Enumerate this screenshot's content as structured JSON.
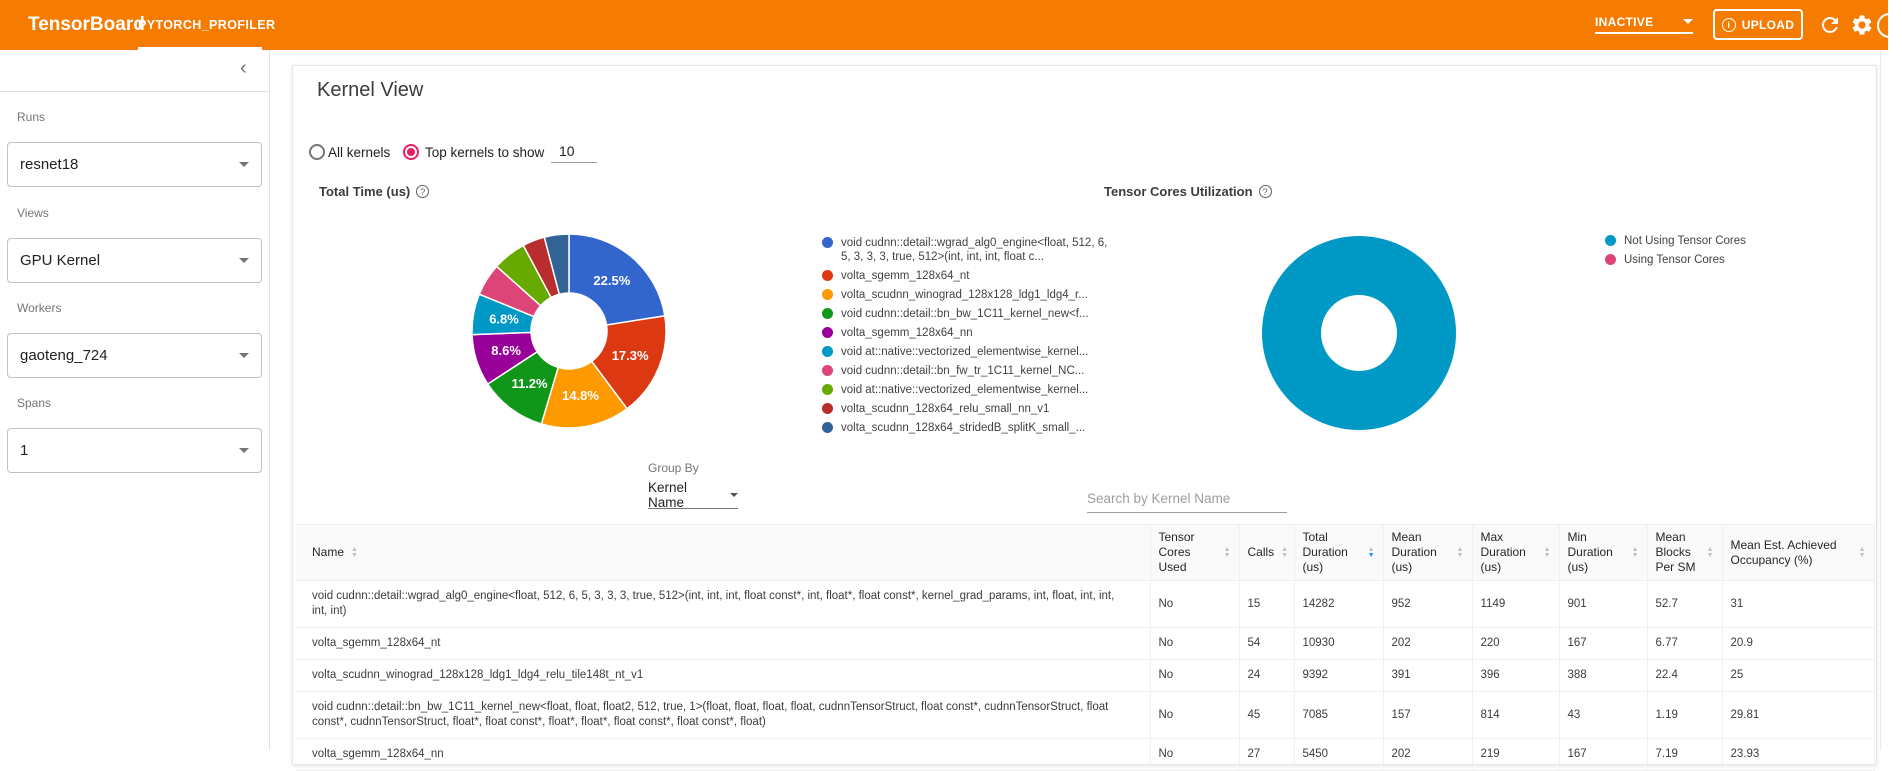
{
  "header": {
    "brand": "TensorBoard",
    "tab": "PYTORCH_PROFILER",
    "status": "INACTIVE",
    "upload_label": "UPLOAD",
    "bar_color": "#f57c00"
  },
  "sidebar": {
    "sections": [
      {
        "label": "Runs",
        "value": "resnet18"
      },
      {
        "label": "Views",
        "value": "GPU Kernel"
      },
      {
        "label": "Workers",
        "value": "gaoteng_724"
      },
      {
        "label": "Spans",
        "value": "1"
      }
    ]
  },
  "main": {
    "title": "Kernel View",
    "radios": [
      {
        "label": "All kernels",
        "selected": false
      },
      {
        "label": "Top kernels to show",
        "selected": true
      }
    ],
    "top_kernels_value": "10",
    "group_by": {
      "label": "Group By",
      "value": "Kernel Name"
    },
    "search_placeholder": "Search by Kernel Name"
  },
  "chart_data": [
    {
      "type": "pie",
      "donut": true,
      "title": "Total Time (us)",
      "values_are_percent": true,
      "legend_position": "right",
      "show_percent_labels": true,
      "label_min_pct": 6,
      "labels": [
        "void cudnn::detail::wgrad_alg0_engine<float, 512, 6, 5, 3, 3, 3, true, 512>(int, int, int, float c...",
        "volta_sgemm_128x64_nt",
        "volta_scudnn_winograd_128x128_ldg1_ldg4_r...",
        "void cudnn::detail::bn_bw_1C11_kernel_new<f...",
        "volta_sgemm_128x64_nn",
        "void at::native::vectorized_elementwise_kernel...",
        "void cudnn::detail::bn_fw_tr_1C11_kernel_NC...",
        "void at::native::vectorized_elementwise_kernel...",
        "volta_scudnn_128x64_relu_small_nn_v1",
        "volta_scudnn_128x64_stridedB_splitK_small_..."
      ],
      "values": [
        22.5,
        17.3,
        14.8,
        11.2,
        8.6,
        6.8,
        5.4,
        5.6,
        3.7,
        4.1
      ],
      "colors": [
        "#3366cc",
        "#dc3912",
        "#ff9900",
        "#109618",
        "#990099",
        "#0099c6",
        "#dd4477",
        "#66aa00",
        "#b82e2e",
        "#316395"
      ]
    },
    {
      "type": "pie",
      "donut": true,
      "title": "Tensor Cores Utilization",
      "values_are_percent": true,
      "legend_position": "right",
      "show_percent_labels": false,
      "label_min_pct": 101,
      "labels": [
        "Not Using Tensor Cores",
        "Using Tensor Cores"
      ],
      "values": [
        100,
        0
      ],
      "colors": [
        "#0099c6",
        "#dd4477"
      ]
    }
  ],
  "table": {
    "columns": [
      {
        "label": "Name",
        "sortable": true,
        "sorted": null
      },
      {
        "label": "Tensor Cores Used",
        "sortable": true,
        "sorted": null
      },
      {
        "label": "Calls",
        "sortable": true,
        "sorted": null
      },
      {
        "label": "Total Duration (us)",
        "sortable": true,
        "sorted": "desc"
      },
      {
        "label": "Mean Duration (us)",
        "sortable": true,
        "sorted": null
      },
      {
        "label": "Max Duration (us)",
        "sortable": true,
        "sorted": null
      },
      {
        "label": "Min Duration (us)",
        "sortable": true,
        "sorted": null
      },
      {
        "label": "Mean Blocks Per SM",
        "sortable": true,
        "sorted": null
      },
      {
        "label": "Mean Est. Achieved Occupancy (%)",
        "sortable": true,
        "sorted": null
      }
    ],
    "rows": [
      [
        "void cudnn::detail::wgrad_alg0_engine<float, 512, 6, 5, 3, 3, 3, true, 512>(int, int, int, float const*, int, float*, float const*, kernel_grad_params, int, float, int, int, int, int)",
        "No",
        "15",
        "14282",
        "952",
        "1149",
        "901",
        "52.7",
        "31"
      ],
      [
        "volta_sgemm_128x64_nt",
        "No",
        "54",
        "10930",
        "202",
        "220",
        "167",
        "6.77",
        "20.9"
      ],
      [
        "volta_scudnn_winograd_128x128_ldg1_ldg4_relu_tile148t_nt_v1",
        "No",
        "24",
        "9392",
        "391",
        "396",
        "388",
        "22.4",
        "25"
      ],
      [
        "void cudnn::detail::bn_bw_1C11_kernel_new<float, float, float2, 512, true, 1>(float, float, float, float, cudnnTensorStruct, float const*, cudnnTensorStruct, float const*, cudnnTensorStruct, float*, float const*, float*, float*, float const*, float const*, float)",
        "No",
        "45",
        "7085",
        "157",
        "814",
        "43",
        "1.19",
        "29.81"
      ],
      [
        "volta_sgemm_128x64_nn",
        "No",
        "27",
        "5450",
        "202",
        "219",
        "167",
        "7.19",
        "23.93"
      ]
    ]
  }
}
